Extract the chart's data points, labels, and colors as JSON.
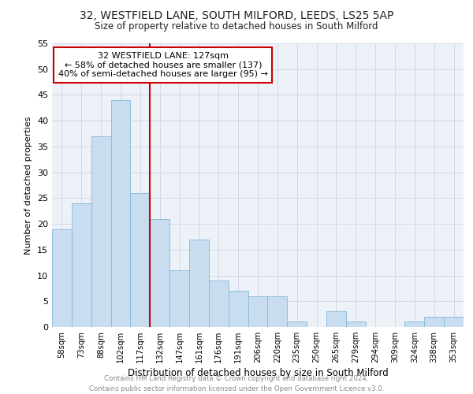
{
  "title1": "32, WESTFIELD LANE, SOUTH MILFORD, LEEDS, LS25 5AP",
  "title2": "Size of property relative to detached houses in South Milford",
  "xlabel": "Distribution of detached houses by size in South Milford",
  "ylabel": "Number of detached properties",
  "categories": [
    "58sqm",
    "73sqm",
    "88sqm",
    "102sqm",
    "117sqm",
    "132sqm",
    "147sqm",
    "161sqm",
    "176sqm",
    "191sqm",
    "206sqm",
    "220sqm",
    "235sqm",
    "250sqm",
    "265sqm",
    "279sqm",
    "294sqm",
    "309sqm",
    "324sqm",
    "338sqm",
    "353sqm"
  ],
  "values": [
    19,
    24,
    37,
    44,
    26,
    21,
    11,
    17,
    9,
    7,
    6,
    6,
    1,
    0,
    3,
    1,
    0,
    0,
    1,
    2,
    2
  ],
  "bar_color": "#c8ddf0",
  "bar_edge_color": "#85b8d8",
  "vline_x": 4.5,
  "vline_color": "#cc0000",
  "annotation_line1": "32 WESTFIELD LANE: 127sqm",
  "annotation_line2": "← 58% of detached houses are smaller (137)",
  "annotation_line3": "40% of semi-detached houses are larger (95) →",
  "annotation_box_color": "#ffffff",
  "annotation_box_edge": "#cc0000",
  "ylim": [
    0,
    55
  ],
  "yticks": [
    0,
    5,
    10,
    15,
    20,
    25,
    30,
    35,
    40,
    45,
    50,
    55
  ],
  "footer1": "Contains HM Land Registry data © Crown copyright and database right 2024.",
  "footer2": "Contains public sector information licensed under the Open Government Licence v3.0.",
  "grid_color": "#d0d8e8",
  "bg_color": "#edf2f8"
}
